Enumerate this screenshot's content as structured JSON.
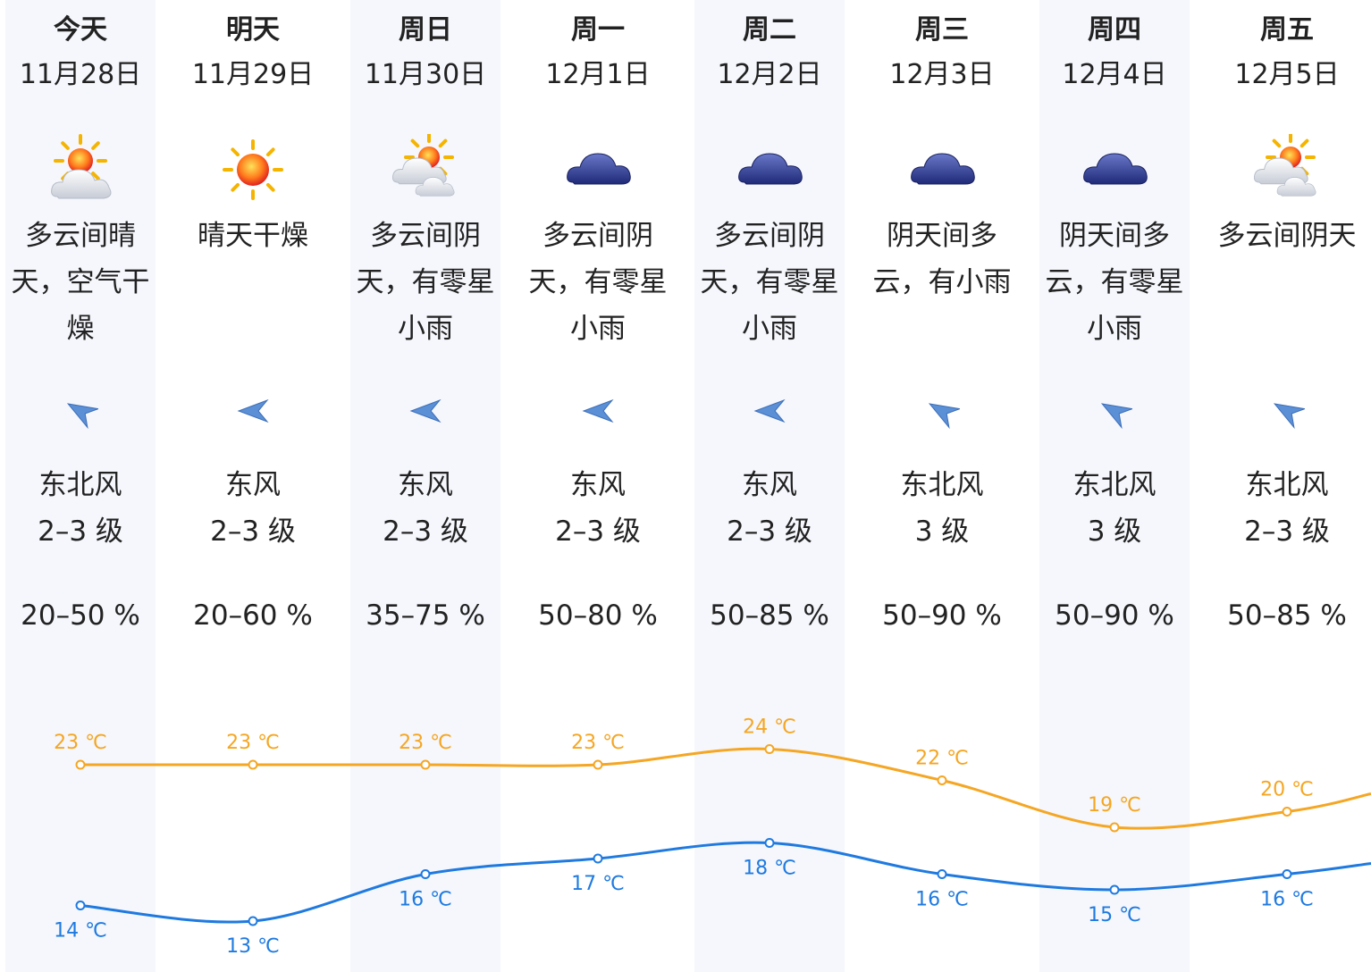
{
  "forecast": [
    {
      "day": "今天",
      "date": "11月28日",
      "icon": "sun-behind-cloud-icon",
      "desc": "多云间晴天，空气干燥",
      "wind_dir": "东北风",
      "wind_level": "2–3 级",
      "humidity": "20–50 %",
      "high": 23,
      "low": 14,
      "high_label": "23 ℃",
      "low_label": "14 ℃",
      "wind_icon": "wind-northeast-arrow-icon"
    },
    {
      "day": "明天",
      "date": "11月29日",
      "icon": "sunny-icon",
      "desc": "晴天干燥",
      "wind_dir": "东风",
      "wind_level": "2–3 级",
      "humidity": "20–60 %",
      "high": 23,
      "low": 13,
      "high_label": "23 ℃",
      "low_label": "13 ℃",
      "wind_icon": "wind-east-arrow-icon"
    },
    {
      "day": "周日",
      "date": "11月30日",
      "icon": "partly-cloudy-icon",
      "desc": "多云间阴天，有零星小雨",
      "wind_dir": "东风",
      "wind_level": "2–3 级",
      "humidity": "35–75 %",
      "high": 23,
      "low": 16,
      "high_label": "23 ℃",
      "low_label": "16 ℃",
      "wind_icon": "wind-east-arrow-icon"
    },
    {
      "day": "周一",
      "date": "12月1日",
      "icon": "overcast-cloud-icon",
      "desc": "多云间阴天，有零星小雨",
      "wind_dir": "东风",
      "wind_level": "2–3 级",
      "humidity": "50–80 %",
      "high": 23,
      "low": 17,
      "high_label": "23 ℃",
      "low_label": "17 ℃",
      "wind_icon": "wind-east-arrow-icon"
    },
    {
      "day": "周二",
      "date": "12月2日",
      "icon": "overcast-cloud-icon",
      "desc": "多云间阴天，有零星小雨",
      "wind_dir": "东风",
      "wind_level": "2–3 级",
      "humidity": "50–85 %",
      "high": 24,
      "low": 18,
      "high_label": "24 ℃",
      "low_label": "18 ℃",
      "wind_icon": "wind-east-arrow-icon"
    },
    {
      "day": "周三",
      "date": "12月3日",
      "icon": "overcast-cloud-icon",
      "desc": "阴天间多云，有小雨",
      "wind_dir": "东北风",
      "wind_level": "3 级",
      "humidity": "50–90 %",
      "high": 22,
      "low": 16,
      "high_label": "22 ℃",
      "low_label": "16 ℃",
      "wind_icon": "wind-northeast-arrow-icon"
    },
    {
      "day": "周四",
      "date": "12月4日",
      "icon": "overcast-cloud-icon",
      "desc": "阴天间多云，有零星小雨",
      "wind_dir": "东北风",
      "wind_level": "3 级",
      "humidity": "50–90 %",
      "high": 19,
      "low": 15,
      "high_label": "19 ℃",
      "low_label": "15 ℃",
      "wind_icon": "wind-northeast-arrow-icon"
    },
    {
      "day": "周五",
      "date": "12月5日",
      "icon": "partly-cloudy-icon",
      "desc": "多云间阴天",
      "wind_dir": "东北风",
      "wind_level": "2–3 级",
      "humidity": "50–85 %",
      "high": 20,
      "low": 16,
      "high_label": "20 ℃",
      "low_label": "16 ℃",
      "wind_icon": "wind-northeast-arrow-icon"
    }
  ],
  "colors": {
    "high_line": "#f5a623",
    "low_line": "#1f7ae0",
    "column_bg": "#f5f7fc"
  }
}
